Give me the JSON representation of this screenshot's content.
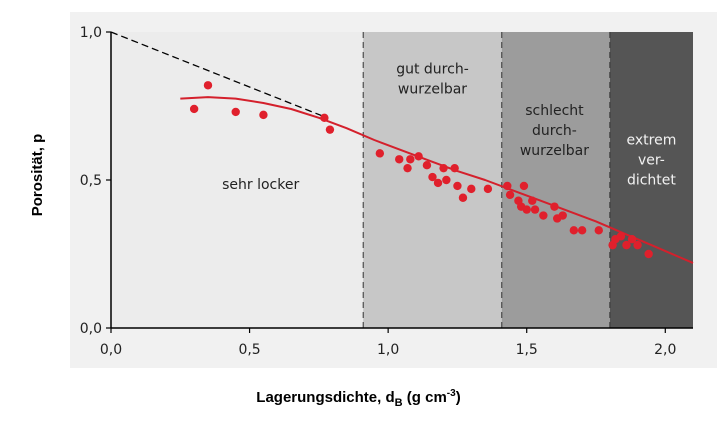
{
  "chart_data": {
    "type": "scatter",
    "ylabel": "Porosität, p",
    "xlabel": {
      "main": "Lagerungsdichte, d",
      "sub": "B",
      "unit_open": " (g cm",
      "sup": "-3",
      "unit_close": ")"
    },
    "xlim": [
      0,
      2.1
    ],
    "ylim": [
      0,
      1.0
    ],
    "x_ticks": [
      {
        "value": 0.0,
        "label": "0,0"
      },
      {
        "value": 0.5,
        "label": "0,5"
      },
      {
        "value": 1.0,
        "label": "1,0"
      },
      {
        "value": 1.5,
        "label": "1,5"
      },
      {
        "value": 2.0,
        "label": "2,0"
      }
    ],
    "y_ticks": [
      {
        "value": 0.0,
        "label": "0,0"
      },
      {
        "value": 0.5,
        "label": "0,5"
      },
      {
        "value": 1.0,
        "label": "1,0"
      }
    ],
    "zones": [
      {
        "x0": 0.0,
        "x1": 0.91,
        "lines": [
          "sehr locker"
        ],
        "label_x": 0.54,
        "label_y": 0.47,
        "color": "#ececec",
        "text": "dark"
      },
      {
        "x0": 0.91,
        "x1": 1.41,
        "lines": [
          "gut durch-",
          "wurzelbar"
        ],
        "label_x": 1.16,
        "label_y": 0.86,
        "color": "#c7c7c7",
        "text": "dark"
      },
      {
        "x0": 1.41,
        "x1": 1.8,
        "lines": [
          "schlecht",
          "durch-",
          "wurzelbar"
        ],
        "label_x": 1.6,
        "label_y": 0.72,
        "color": "#9c9c9c",
        "text": "dark"
      },
      {
        "x0": 1.8,
        "x1": 2.1,
        "lines": [
          "extrem",
          "ver-",
          "dichtet"
        ],
        "label_x": 1.95,
        "label_y": 0.62,
        "color": "#555555",
        "text": "light"
      }
    ],
    "reference_line": {
      "x": [
        0.0,
        0.78
      ],
      "y": [
        1.0,
        0.71
      ],
      "style": "dashed",
      "color": "#000000"
    },
    "fit_curve": {
      "color": "#d4202c",
      "x": [
        0.25,
        0.35,
        0.45,
        0.55,
        0.65,
        0.75,
        0.85,
        0.95,
        1.05,
        1.15,
        1.25,
        1.35,
        1.45,
        1.55,
        1.65,
        1.75,
        1.85,
        1.95,
        2.05,
        2.1
      ],
      "y": [
        0.775,
        0.78,
        0.775,
        0.76,
        0.74,
        0.71,
        0.675,
        0.635,
        0.6,
        0.565,
        0.53,
        0.5,
        0.465,
        0.43,
        0.395,
        0.36,
        0.32,
        0.28,
        0.24,
        0.22
      ]
    },
    "points": {
      "color": "#e0202c",
      "x": [
        0.3,
        0.35,
        0.45,
        0.55,
        0.77,
        0.79,
        0.97,
        1.04,
        1.07,
        1.08,
        1.11,
        1.14,
        1.16,
        1.18,
        1.2,
        1.21,
        1.24,
        1.25,
        1.27,
        1.3,
        1.36,
        1.43,
        1.44,
        1.47,
        1.48,
        1.49,
        1.5,
        1.52,
        1.53,
        1.56,
        1.6,
        1.61,
        1.63,
        1.67,
        1.7,
        1.76,
        1.81,
        1.82,
        1.84,
        1.86,
        1.88,
        1.9,
        1.94
      ],
      "y": [
        0.74,
        0.82,
        0.73,
        0.72,
        0.71,
        0.67,
        0.59,
        0.57,
        0.54,
        0.57,
        0.58,
        0.55,
        0.51,
        0.49,
        0.54,
        0.5,
        0.54,
        0.48,
        0.44,
        0.47,
        0.47,
        0.48,
        0.45,
        0.43,
        0.41,
        0.48,
        0.4,
        0.43,
        0.4,
        0.38,
        0.41,
        0.37,
        0.38,
        0.33,
        0.33,
        0.33,
        0.28,
        0.3,
        0.31,
        0.28,
        0.3,
        0.28,
        0.25
      ]
    }
  }
}
